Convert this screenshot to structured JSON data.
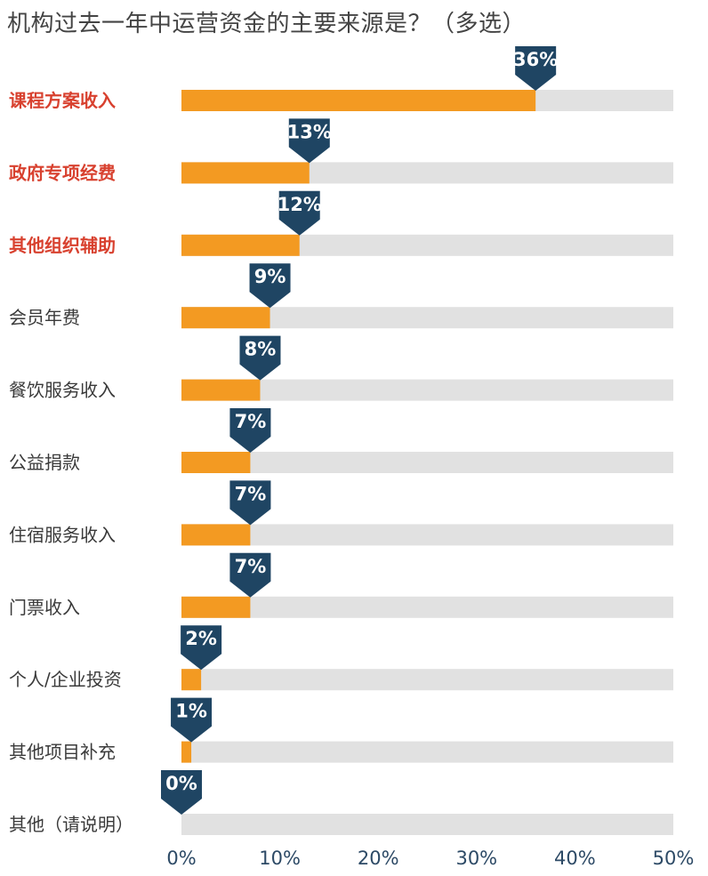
{
  "chart_data": {
    "type": "bar",
    "orientation": "horizontal",
    "title": "机构过去一年中运营资金的主要来源是？（多选）",
    "categories": [
      "课程方案收入",
      "政府专项经费",
      "其他组织辅助",
      "会员年费",
      "餐饮服务收入",
      "公益捐款",
      "住宿服务收入",
      "门票收入",
      "个人/企业投资",
      "其他项目补充",
      "其他（请说明）"
    ],
    "values": [
      36,
      13,
      12,
      9,
      8,
      7,
      7,
      7,
      2,
      1,
      0
    ],
    "value_labels": [
      "36%",
      "13%",
      "12%",
      "9%",
      "8%",
      "7%",
      "7%",
      "7%",
      "2%",
      "1%",
      "0%"
    ],
    "highlighted_categories": [
      "课程方案收入",
      "政府专项经费",
      "其他组织辅助"
    ],
    "xlim": [
      0,
      50
    ],
    "x_ticks": [
      "0%",
      "10%",
      "20%",
      "30%",
      "40%",
      "50%"
    ],
    "grid": false,
    "colors": {
      "bar": "#f39a22",
      "track": "#e1e1e1",
      "marker": "#1f4563",
      "highlight_text": "#d8412f",
      "text": "#3a3a3a",
      "tick_text": "#2d4a66"
    }
  }
}
